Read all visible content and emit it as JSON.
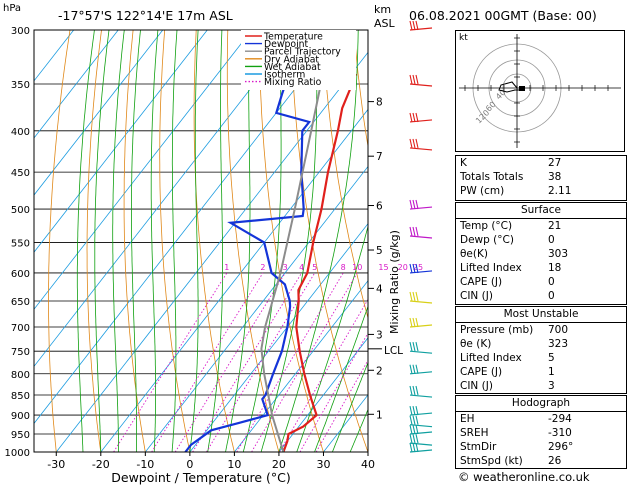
{
  "header": {
    "location": "-17°57'S  122°14'E  17m  ASL",
    "datetime": "06.08.2021  00GMT  (Base: 00)",
    "pressure_unit": "hPa",
    "height_unit_km": "km",
    "height_unit_asl": "ASL",
    "credit": "© weatheronline.co.uk"
  },
  "chart_data": {
    "type": "line",
    "title": "",
    "xlabel": "Dewpoint / Temperature (°C)",
    "ylabel": "",
    "mixing_ratio_label": "Mixing Ratio (g/kg)",
    "xlim": [
      -35,
      40
    ],
    "ylim": [
      1000,
      300
    ],
    "x_ticks": [
      -30,
      -20,
      -10,
      0,
      10,
      20,
      30,
      40
    ],
    "pressure_ticks": [
      300,
      350,
      400,
      450,
      500,
      550,
      600,
      650,
      700,
      750,
      800,
      850,
      900,
      950,
      1000
    ],
    "km_ticks": [
      {
        "label": "8",
        "p": 368
      },
      {
        "label": "7",
        "p": 430
      },
      {
        "label": "6",
        "p": 495
      },
      {
        "label": "5",
        "p": 562
      },
      {
        "label": "4",
        "p": 627
      },
      {
        "label": "3",
        "p": 715
      },
      {
        "label": "2",
        "p": 792
      },
      {
        "label": "1",
        "p": 898
      }
    ],
    "lcl_label": "LCL",
    "lcl_pressure": 745,
    "mixing_ratio_values": [
      "1",
      "2",
      "3",
      "4",
      "5",
      "8",
      "10",
      "15",
      "20",
      "25"
    ],
    "legend": [
      {
        "name": "Temperature",
        "color": "#e0201c"
      },
      {
        "name": "Dewpoint",
        "color": "#1434d8"
      },
      {
        "name": "Parcel Trajectory",
        "color": "#8c8c8c"
      },
      {
        "name": "Dry Adiabat",
        "color": "#e08818"
      },
      {
        "name": "Wet Adiabat",
        "color": "#10a010"
      },
      {
        "name": "Isotherm",
        "color": "#1c9ce0"
      },
      {
        "name": "Mixing Ratio",
        "color": "#d818c8"
      }
    ],
    "series": [
      {
        "name": "Temperature",
        "color": "#e0201c",
        "points": [
          [
            1000,
            21
          ],
          [
            970,
            20
          ],
          [
            950,
            19
          ],
          [
            930,
            21
          ],
          [
            900,
            22
          ],
          [
            870,
            19
          ],
          [
            850,
            17
          ],
          [
            800,
            12
          ],
          [
            750,
            7
          ],
          [
            700,
            2
          ],
          [
            650,
            -2
          ],
          [
            630,
            -4
          ],
          [
            600,
            -5
          ],
          [
            550,
            -9
          ],
          [
            500,
            -13
          ],
          [
            450,
            -18
          ],
          [
            400,
            -23
          ],
          [
            375,
            -26
          ],
          [
            350,
            -28
          ],
          [
            340,
            -29
          ]
        ]
      },
      {
        "name": "Dewpoint",
        "color": "#1434d8",
        "points": [
          [
            1000,
            -1
          ],
          [
            980,
            -1
          ],
          [
            960,
            0
          ],
          [
            940,
            1
          ],
          [
            920,
            6
          ],
          [
            900,
            11
          ],
          [
            860,
            7
          ],
          [
            850,
            7
          ],
          [
            800,
            5
          ],
          [
            750,
            3
          ],
          [
            700,
            0
          ],
          [
            660,
            -3
          ],
          [
            650,
            -4
          ],
          [
            620,
            -8
          ],
          [
            600,
            -13
          ],
          [
            550,
            -20
          ],
          [
            520,
            -31
          ],
          [
            510,
            -16
          ],
          [
            500,
            -17
          ],
          [
            450,
            -24
          ],
          [
            400,
            -31
          ],
          [
            390,
            -31
          ],
          [
            380,
            -40
          ],
          [
            360,
            -42
          ],
          [
            340,
            -44
          ],
          [
            300,
            -50
          ]
        ]
      },
      {
        "name": "Parcel Trajectory",
        "color": "#8c8c8c",
        "points": [
          [
            1000,
            21
          ],
          [
            900,
            12
          ],
          [
            800,
            3
          ],
          [
            745,
            -2
          ],
          [
            700,
            -5
          ],
          [
            600,
            -11
          ],
          [
            500,
            -19
          ],
          [
            400,
            -29
          ],
          [
            300,
            -42
          ]
        ]
      }
    ]
  },
  "hodograph": {
    "label": "kt",
    "ring_labels": [
      "40",
      "60",
      "120"
    ]
  },
  "indices": {
    "rows": [
      {
        "k": "K",
        "v": "27"
      },
      {
        "k": "Totals Totals",
        "v": "38"
      },
      {
        "k": "PW (cm)",
        "v": "2.11"
      }
    ]
  },
  "surface": {
    "title": "Surface",
    "rows": [
      {
        "k": "Temp (°C)",
        "v": "21"
      },
      {
        "k": "Dewp (°C)",
        "v": "0"
      },
      {
        "k": "θe(K)",
        "v": "303"
      },
      {
        "k": "Lifted Index",
        "v": "18"
      },
      {
        "k": "CAPE (J)",
        "v": "0"
      },
      {
        "k": "CIN (J)",
        "v": "0"
      }
    ]
  },
  "most_unstable": {
    "title": "Most Unstable",
    "rows": [
      {
        "k": "Pressure (mb)",
        "v": "700"
      },
      {
        "k": "θe (K)",
        "v": "323"
      },
      {
        "k": "Lifted Index",
        "v": "5"
      },
      {
        "k": "CAPE (J)",
        "v": "1"
      },
      {
        "k": "CIN (J)",
        "v": "3"
      }
    ]
  },
  "hodograph_stats": {
    "title": "Hodograph",
    "rows": [
      {
        "k": "EH",
        "v": "-294"
      },
      {
        "k": "SREH",
        "v": "-310"
      },
      {
        "k": "StmDir",
        "v": "296°"
      },
      {
        "k": "StmSpd (kt)",
        "v": "26"
      }
    ]
  }
}
